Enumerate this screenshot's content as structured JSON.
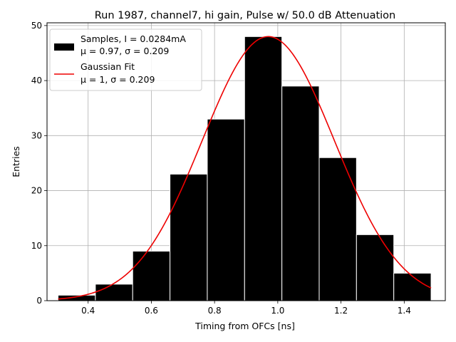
{
  "chart_data": {
    "type": "bar",
    "title": "Run 1987, channel7, hi gain, Pulse w/ 50.0 dB Attenuation",
    "xlabel": "Timing from OFCs [ns]",
    "ylabel": "Entries",
    "xlim": [
      0.27,
      1.53
    ],
    "ylim": [
      0,
      50.5
    ],
    "xticks": [
      "0.4",
      "0.6",
      "0.8",
      "1.0",
      "1.2",
      "1.4"
    ],
    "yticks": [
      "0",
      "10",
      "20",
      "30",
      "40",
      "50"
    ],
    "grid": true,
    "legend_position": "top-left",
    "bin_edges": [
      0.305,
      0.423,
      0.541,
      0.659,
      0.777,
      0.895,
      1.013,
      1.131,
      1.249,
      1.367,
      1.485
    ],
    "values": [
      1,
      3,
      9,
      23,
      33,
      48,
      39,
      26,
      12,
      5
    ],
    "fit": {
      "type": "gaussian",
      "amplitude": 48,
      "mean": 0.97,
      "sigma": 0.209,
      "x_range": [
        0.305,
        1.485
      ]
    },
    "series": [
      {
        "name": "Samples, I = 0.0284mA",
        "detail": "μ = 0.97, σ = 0.209",
        "color": "#000000"
      },
      {
        "name": "Gaussian Fit",
        "detail": "μ = 1, σ = 0.209",
        "color": "#ee0000"
      }
    ]
  }
}
